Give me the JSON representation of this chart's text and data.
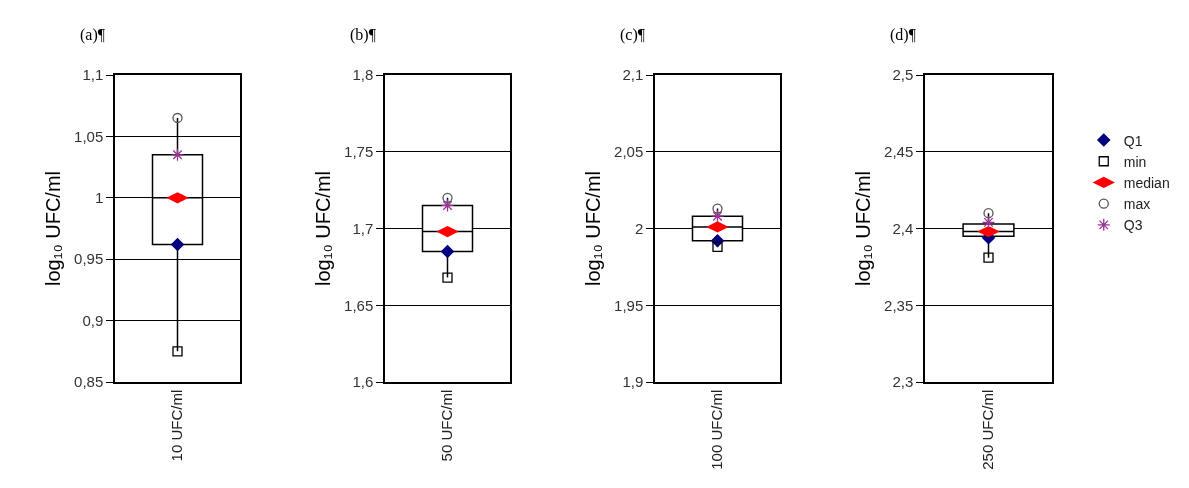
{
  "chart_data": [
    {
      "type": "box",
      "title": "(a)¶",
      "ylabel": "log₁₀ UFC/ml",
      "categories": [
        "10 UFC/ml"
      ],
      "ylim": [
        0.85,
        1.1
      ],
      "yticks": [
        {
          "value": 0.85,
          "label": "0,85"
        },
        {
          "value": 0.9,
          "label": "0,9"
        },
        {
          "value": 0.95,
          "label": "0,95"
        },
        1,
        {
          "value": 1.05,
          "label": "1,05"
        },
        {
          "value": 1.1,
          "label": "1,1"
        }
      ],
      "grid": "y",
      "legend": false,
      "boxes": [
        {
          "low": 0.875,
          "q1": 0.962,
          "median": 1.0,
          "q3": 1.035,
          "high": 1.065
        }
      ],
      "series": [
        {
          "type": "scatter",
          "marker": "diamond",
          "color": "#000080",
          "values": [
            0.962
          ]
        },
        {
          "type": "scatter",
          "marker": "square",
          "color": "#000000",
          "values": [
            0.875
          ]
        },
        {
          "type": "scatter",
          "color": "#ff0000",
          "values": [
            1.0
          ]
        },
        {
          "type": "scatter",
          "marker": "circle",
          "color": "#555555",
          "values": [
            1.065
          ]
        },
        {
          "type": "scatter",
          "marker": "cross",
          "color": "#993399",
          "values": [
            1.035
          ]
        }
      ]
    },
    {
      "type": "box",
      "title": "(b)¶",
      "ylabel": "log₁₀ UFC/ml",
      "categories": [
        "50 UFC/ml"
      ],
      "ylim": [
        1.6,
        1.8
      ],
      "yticks": [
        {
          "value": 1.6,
          "label": "1,6"
        },
        {
          "value": 1.65,
          "label": "1,65"
        },
        {
          "value": 1.7,
          "label": "1,7"
        },
        {
          "value": 1.75,
          "label": "1,75"
        },
        {
          "value": 1.8,
          "label": "1,8"
        }
      ],
      "grid": "y",
      "legend": false,
      "boxes": [
        {
          "low": 1.668,
          "q1": 1.685,
          "median": 1.698,
          "q3": 1.715,
          "high": 1.72
        }
      ],
      "series": [
        {
          "type": "scatter",
          "marker": "diamond",
          "color": "#000080",
          "values": [
            1.685
          ]
        },
        {
          "type": "scatter",
          "marker": "square",
          "color": "#000000",
          "values": [
            1.668
          ]
        },
        {
          "type": "scatter",
          "color": "#ff0000",
          "values": [
            1.698
          ]
        },
        {
          "type": "scatter",
          "marker": "circle",
          "color": "#555555",
          "values": [
            1.72
          ]
        },
        {
          "type": "scatter",
          "marker": "cross",
          "color": "#993399",
          "values": [
            1.715
          ]
        }
      ]
    },
    {
      "type": "box",
      "title": "(c)¶",
      "ylabel": "log₁₀ UFC/ml",
      "categories": [
        "100 UFC/ml"
      ],
      "ylim": [
        1.9,
        2.1
      ],
      "yticks": [
        {
          "value": 1.9,
          "label": "1,9"
        },
        {
          "value": 1.95,
          "label": "1,95"
        },
        2,
        {
          "value": 2.05,
          "label": "2,05"
        },
        {
          "value": 2.1,
          "label": "2,1"
        }
      ],
      "grid": "y",
      "legend": false,
      "boxes": [
        {
          "low": 1.988,
          "q1": 1.992,
          "median": 2.001,
          "q3": 2.008,
          "high": 2.013
        }
      ],
      "series": [
        {
          "type": "scatter",
          "marker": "diamond",
          "color": "#000080",
          "values": [
            1.992
          ]
        },
        {
          "type": "scatter",
          "marker": "square",
          "color": "#000000",
          "values": [
            1.988
          ]
        },
        {
          "type": "scatter",
          "color": "#ff0000",
          "values": [
            2.001
          ]
        },
        {
          "type": "scatter",
          "marker": "circle",
          "color": "#555555",
          "values": [
            2.013
          ]
        },
        {
          "type": "scatter",
          "marker": "cross",
          "color": "#993399",
          "values": [
            2.008
          ]
        }
      ]
    },
    {
      "type": "box",
      "title": "(d)¶",
      "ylabel": "log₁₀ UFC/ml",
      "categories": [
        "250 UFC/ml"
      ],
      "ylim": [
        2.3,
        2.5
      ],
      "yticks": [
        {
          "value": 2.3,
          "label": "2,3"
        },
        {
          "value": 2.35,
          "label": "2,35"
        },
        {
          "value": 2.4,
          "label": "2,4"
        },
        {
          "value": 2.45,
          "label": "2,45"
        },
        {
          "value": 2.5,
          "label": "2,5"
        }
      ],
      "grid": "y",
      "legend": "right",
      "boxes": [
        {
          "low": 2.381,
          "q1": 2.395,
          "median": 2.398,
          "q3": 2.403,
          "high": 2.41
        }
      ],
      "series": [
        {
          "name": "Q1",
          "type": "scatter",
          "marker": "diamond",
          "color": "#000080",
          "values": [
            2.394
          ]
        },
        {
          "name": "min",
          "type": "scatter",
          "marker": "square",
          "color": "#000000",
          "values": [
            2.381
          ]
        },
        {
          "name": "median",
          "type": "scatter",
          "color": "#ff0000",
          "values": [
            2.398
          ]
        },
        {
          "name": "max",
          "type": "scatter",
          "marker": "circle",
          "color": "#555555",
          "values": [
            2.41
          ]
        },
        {
          "name": "Q3",
          "type": "scatter",
          "marker": "cross",
          "color": "#993399",
          "values": [
            2.404
          ]
        }
      ]
    }
  ]
}
